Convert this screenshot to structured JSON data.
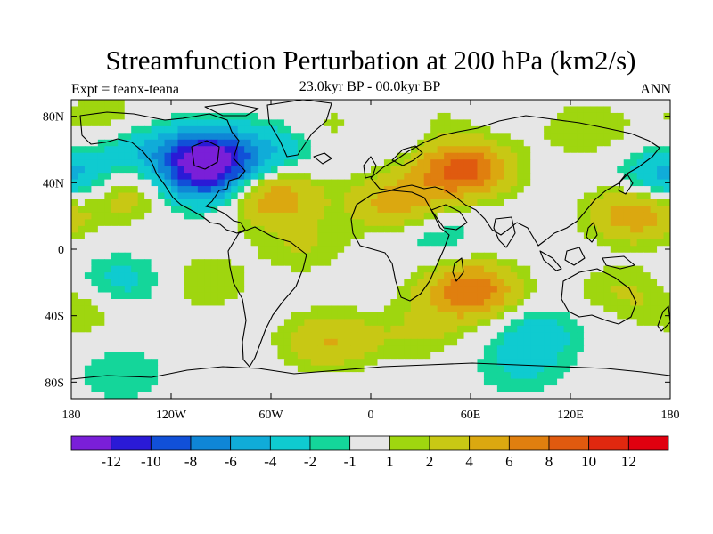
{
  "chart_data": {
    "type": "heatmap",
    "title": "Streamfunction Perturbation at 200 hPa (km2/s)",
    "left_subtitle": "Expt = teanx-teana",
    "center_subtitle": "23.0kyr BP - 00.0kyr BP",
    "right_subtitle": "ANN",
    "x_range": [
      -180,
      180
    ],
    "y_range": [
      -90,
      90
    ],
    "x_ticks": [
      {
        "value": -180,
        "label": "180"
      },
      {
        "value": -120,
        "label": "120W"
      },
      {
        "value": -60,
        "label": "60W"
      },
      {
        "value": 0,
        "label": "0"
      },
      {
        "value": 60,
        "label": "60E"
      },
      {
        "value": 120,
        "label": "120E"
      },
      {
        "value": 180,
        "label": "180"
      }
    ],
    "y_ticks": [
      {
        "value": 80,
        "label": "80N"
      },
      {
        "value": 40,
        "label": "40N"
      },
      {
        "value": 0,
        "label": "0"
      },
      {
        "value": -40,
        "label": "40S"
      },
      {
        "value": -80,
        "label": "80S"
      }
    ],
    "colorbar": {
      "boundaries": [
        -14,
        -12,
        -10,
        -8,
        -6,
        -4,
        -2,
        -1,
        1,
        2,
        4,
        6,
        8,
        10,
        12,
        14
      ],
      "labels": [
        "-12",
        "-10",
        "-8",
        "-6",
        "-4",
        "-2",
        "-1",
        "1",
        "2",
        "4",
        "6",
        "8",
        "10",
        "12"
      ],
      "colors": [
        "#7a1fd8",
        "#2a1ad6",
        "#1150d8",
        "#0f86d6",
        "#10acd8",
        "#0fcbd0",
        "#14d69a",
        "#e6e6e6",
        "#9fd60f",
        "#c8c814",
        "#dba810",
        "#e07f0f",
        "#e05a0f",
        "#e0280f",
        "#e0000f"
      ]
    },
    "features": [
      {
        "lon": -98,
        "lat": 55,
        "value": -12
      },
      {
        "lon": -100,
        "lat": 40,
        "value": -6
      },
      {
        "lon": -140,
        "lat": 60,
        "value": -3
      },
      {
        "lon": -55,
        "lat": 60,
        "value": -3
      },
      {
        "lon": -20,
        "lat": 72,
        "value": 2
      },
      {
        "lon": 10,
        "lat": 72,
        "value": -2
      },
      {
        "lon": 30,
        "lat": 80,
        "value": 1.5
      },
      {
        "lon": -160,
        "lat": 78,
        "value": 2
      },
      {
        "lon": 130,
        "lat": 72,
        "value": 2
      },
      {
        "lon": 55,
        "lat": 48,
        "value": 9
      },
      {
        "lon": 15,
        "lat": 28,
        "value": 5
      },
      {
        "lon": -60,
        "lat": 32,
        "value": 6
      },
      {
        "lon": -150,
        "lat": 35,
        "value": 4
      },
      {
        "lon": 160,
        "lat": 22,
        "value": 6
      },
      {
        "lon": 180,
        "lat": 42,
        "value": -3
      },
      {
        "lon": -180,
        "lat": 42,
        "value": -3
      },
      {
        "lon": 40,
        "lat": 8,
        "value": -2
      },
      {
        "lon": -40,
        "lat": 2,
        "value": 2
      },
      {
        "lon": 60,
        "lat": -25,
        "value": 8
      },
      {
        "lon": 30,
        "lat": -50,
        "value": 2
      },
      {
        "lon": 150,
        "lat": -25,
        "value": 2
      },
      {
        "lon": -100,
        "lat": -20,
        "value": 2
      },
      {
        "lon": -150,
        "lat": -20,
        "value": -3
      },
      {
        "lon": -170,
        "lat": -36,
        "value": 2
      },
      {
        "lon": -25,
        "lat": -55,
        "value": 4
      },
      {
        "lon": 100,
        "lat": -50,
        "value": -3
      },
      {
        "lon": -150,
        "lat": -75,
        "value": -2
      },
      {
        "lon": 90,
        "lat": -72,
        "value": -2
      }
    ],
    "map_projection": "cylindrical equidistant",
    "coastlines": "world"
  }
}
